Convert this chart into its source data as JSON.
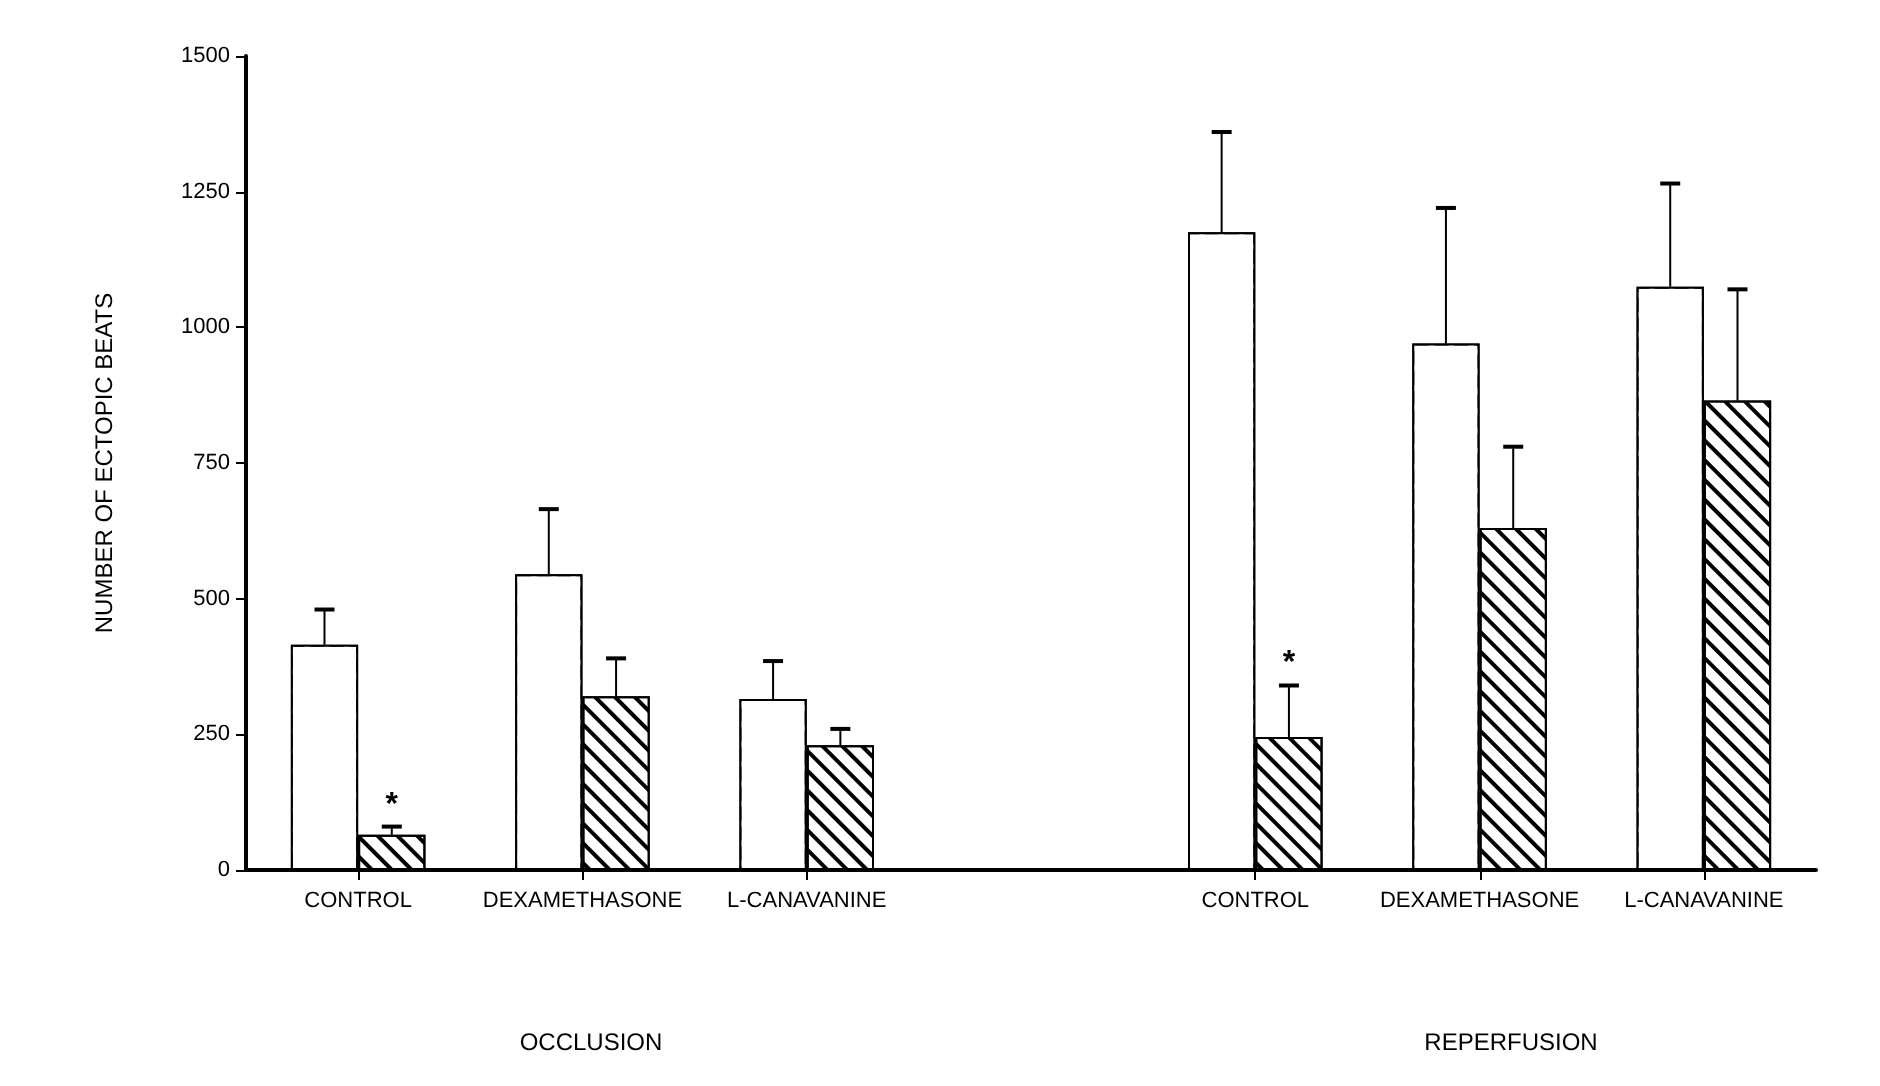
{
  "chart_data": {
    "type": "bar",
    "ylabel": "NUMBER OF ECTOPIC BEATS",
    "categories": [
      "CONTROL",
      "DEXAMETHASONE",
      "L-CANAVANINE",
      null,
      "CONTROL",
      "DEXAMETHASONE",
      "L-CANAVANINE"
    ],
    "series": [
      {
        "color": "#ffffff",
        "values": [
          415,
          545,
          315,
          null,
          1175,
          970,
          1075
        ],
        "errors": [
          [
            415,
            480
          ],
          [
            545,
            665
          ],
          [
            315,
            385
          ],
          null,
          [
            1175,
            1360
          ],
          [
            970,
            1220
          ],
          [
            1075,
            1265
          ]
        ]
      },
      {
        "color": "#000000",
        "values": [
          65,
          320,
          230,
          null,
          245,
          630,
          865
        ],
        "errors": [
          [
            65,
            80
          ],
          [
            320,
            390
          ],
          [
            230,
            260
          ],
          null,
          [
            245,
            340
          ],
          [
            630,
            780
          ],
          [
            865,
            1070
          ]
        ],
        "value_labels": [
          "*",
          null,
          null,
          null,
          "*",
          null,
          null
        ]
      }
    ],
    "ylim": [
      0,
      1500
    ],
    "yticks": [
      0,
      250,
      500,
      750,
      1000,
      1250,
      1500
    ],
    "annotations": [
      "OCCLUSION",
      "REPERFUSION"
    ]
  }
}
